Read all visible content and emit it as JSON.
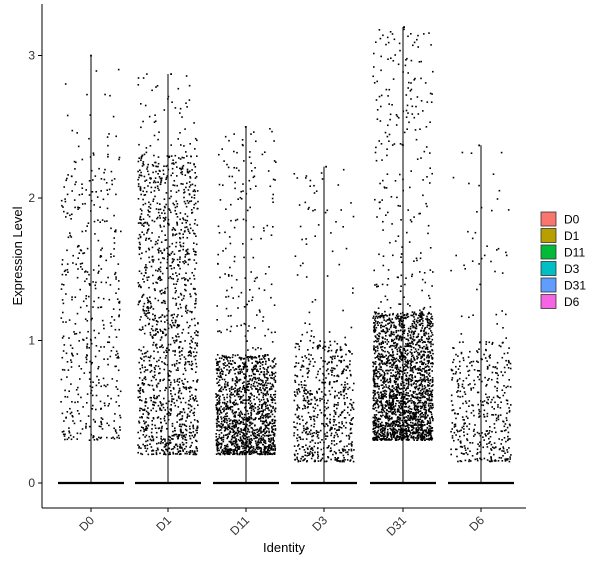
{
  "chart_data": {
    "type": "scatter",
    "subtype": "violin-jitter",
    "xlabel": "Identity",
    "ylabel": "Expression Level",
    "categories": [
      "D0",
      "D1",
      "D11",
      "D3",
      "D31",
      "D6"
    ],
    "yticks": [
      0,
      1,
      2,
      3
    ],
    "ylim": [
      -0.17,
      3.38
    ],
    "grid": false,
    "legend": {
      "placement": "right",
      "entries": [
        {
          "label": "D0",
          "color": "#F8766D"
        },
        {
          "label": "D1",
          "color": "#B79F00"
        },
        {
          "label": "D11",
          "color": "#00BA38"
        },
        {
          "label": "D3",
          "color": "#00BFC4"
        },
        {
          "label": "D31",
          "color": "#619CFF"
        },
        {
          "label": "D6",
          "color": "#F564E3"
        }
      ]
    },
    "groups": [
      {
        "name": "D0",
        "max": 3.0,
        "dense_low": 0.3,
        "dense_high": 2.3,
        "n_points": 450
      },
      {
        "name": "D1",
        "max": 2.87,
        "dense_low": 0.2,
        "dense_high": 2.3,
        "n_points": 1400
      },
      {
        "name": "D11",
        "max": 2.5,
        "dense_low": 0.2,
        "dense_high": 0.9,
        "n_points": 1500
      },
      {
        "name": "D3",
        "max": 2.22,
        "dense_low": 0.15,
        "dense_high": 1.0,
        "n_points": 650
      },
      {
        "name": "D31",
        "max": 3.2,
        "dense_low": 0.3,
        "dense_high": 1.2,
        "n_points": 2300
      },
      {
        "name": "D6",
        "max": 2.37,
        "dense_low": 0.15,
        "dense_high": 1.0,
        "n_points": 450
      }
    ],
    "point_color": "#000000",
    "baseline_value": 0
  }
}
